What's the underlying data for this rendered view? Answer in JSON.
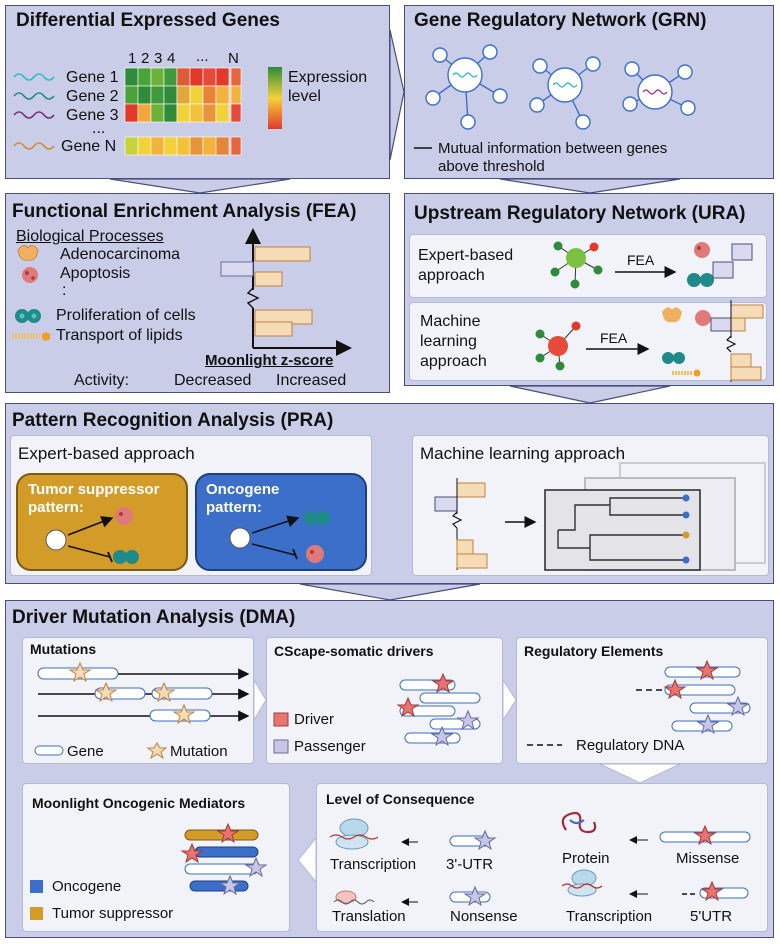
{
  "deg": {
    "title": "Differential Expressed Genes",
    "columns": [
      "1",
      "2",
      "3",
      "4",
      "...",
      "N"
    ],
    "genes": [
      "Gene 1",
      "Gene 2",
      "Gene 3",
      "...",
      "Gene N"
    ],
    "legend": "Expression\nlevel"
  },
  "grn": {
    "title": "Gene Regulatory Network (GRN)",
    "legend": "Mutual information between genes\nabove threshold"
  },
  "fea": {
    "title": "Functional Enrichment Analysis (FEA)",
    "processes_header": "Biological Processes",
    "processes": [
      "Adenocarcinoma",
      "Apoptosis",
      ":",
      "Proliferation of cells",
      "Transport of lipids"
    ],
    "axis_label": "Moonlight z-score",
    "activity_label": "Activity:",
    "decreased": "Decreased",
    "increased": "Increased"
  },
  "ura": {
    "title": "Upstream Regulatory Network (URA)",
    "expert": "Expert-based\napproach",
    "ml": "Machine\nlearning\napproach",
    "fea1": "FEA",
    "fea2": "FEA"
  },
  "pra": {
    "title": "Pattern Recognition Analysis (PRA)",
    "expert": "Expert-based approach",
    "tsg": "Tumor suppressor\npattern:",
    "onc": "Oncogene\npattern:",
    "ml": "Machine learning approach"
  },
  "dma": {
    "title": "Driver Mutation Analysis (DMA)",
    "mutations": {
      "title": "Mutations",
      "gene": "Gene",
      "mutation": "Mutation"
    },
    "cscape": {
      "title": "CScape-somatic drivers",
      "driver": "Driver",
      "passenger": "Passenger"
    },
    "reg": {
      "title": "Regulatory Elements",
      "dna": "Regulatory DNA"
    },
    "mom": {
      "title": "Moonlight Oncogenic Mediators",
      "onc": "Oncogene",
      "tsg": "Tumor suppressor"
    },
    "loc": {
      "title": "Level of Consequence",
      "transcription1": "Transcription",
      "utr3": "3'-UTR",
      "protein": "Protein",
      "missense": "Missense",
      "translation": "Translation",
      "nonsense": "Nonsense",
      "transcription2": "Transcription",
      "utr5": "5'UTR"
    }
  },
  "colors": {
    "panel": "#c9cde8",
    "tsg": "#d39b28",
    "oncogene": "#3b6fc9",
    "driver": "#e8736f",
    "passenger": "#c6c6e8"
  }
}
